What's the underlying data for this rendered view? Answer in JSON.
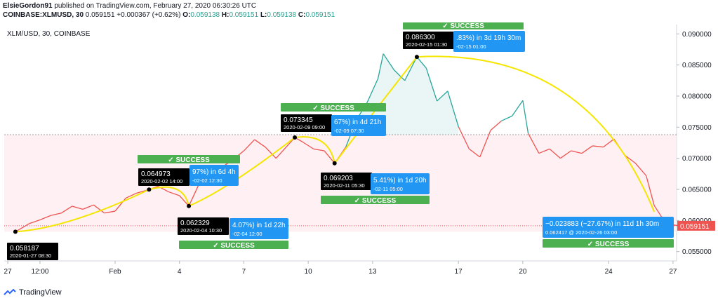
{
  "header": {
    "author": "ElsieGordon91",
    "published_text": "published on TradingView.com, February 27, 2020 06:30:26 UTC",
    "symbol_line": "COINBASE:XLMUSD, 30",
    "last": "0.059151",
    "change": "+0.000367 (+0.62%)",
    "o_label": "O:",
    "o": "0.059138",
    "h_label": "H:",
    "h": "0.059151",
    "l_label": "L:",
    "l": "0.059138",
    "c_label": "C:",
    "c": "0.059151"
  },
  "footer": {
    "brand": "TradingView"
  },
  "chart_data": {
    "type": "line",
    "title": "XLM/USD, 30, COINBASE",
    "x_tick_labels": [
      "27",
      "12:00",
      "Feb",
      "4",
      "7",
      "10",
      "13",
      "17",
      "20",
      "24",
      "27"
    ],
    "y_tick_labels": [
      "0.055000",
      "0.060000",
      "0.065000",
      "0.070000",
      "0.075000",
      "0.080000",
      "0.085000",
      "0.090000"
    ],
    "ylim": [
      0.0535,
      0.0915
    ],
    "xlim": [
      "2020-01-26T20:00",
      "2020-02-27T04:00"
    ],
    "last_price_label": "0.059151",
    "colors": {
      "up": "#26a69a",
      "down": "#ef5350",
      "arrow": "#f5e600",
      "success": "#4caf50",
      "label_blue": "#2196f3",
      "pivot_bg": "#000000"
    },
    "series": [
      {
        "values": [
          [
            "2020-01-27T08:30",
            0.058187
          ],
          [
            "2020-01-28T00:00",
            0.0595
          ],
          [
            "2020-01-28T12:00",
            0.0601
          ],
          [
            "2020-01-29T00:00",
            0.0608
          ],
          [
            "2020-01-29T12:00",
            0.0612
          ],
          [
            "2020-01-30T00:00",
            0.0623
          ],
          [
            "2020-01-30T12:00",
            0.0618
          ],
          [
            "2020-01-31T00:00",
            0.0625
          ],
          [
            "2020-01-31T12:00",
            0.0612
          ],
          [
            "2020-02-01T00:00",
            0.0615
          ],
          [
            "2020-02-01T12:00",
            0.0636
          ],
          [
            "2020-02-02T00:00",
            0.0644
          ],
          [
            "2020-02-02T14:00",
            0.064973
          ],
          [
            "2020-02-03T00:00",
            0.0655
          ],
          [
            "2020-02-03T12:00",
            0.0646
          ],
          [
            "2020-02-04T00:00",
            0.064
          ],
          [
            "2020-02-04T10:30",
            0.062329
          ],
          [
            "2020-02-05T00:00",
            0.0665
          ],
          [
            "2020-02-05T12:00",
            0.0682
          ],
          [
            "2020-02-06T00:00",
            0.0686
          ],
          [
            "2020-02-06T12:00",
            0.0698
          ],
          [
            "2020-02-07T00:00",
            0.0712
          ],
          [
            "2020-02-07T12:00",
            0.073
          ],
          [
            "2020-02-08T00:00",
            0.0718
          ],
          [
            "2020-02-08T12:00",
            0.07
          ],
          [
            "2020-02-09T09:00",
            0.073345
          ],
          [
            "2020-02-09T18:00",
            0.0726
          ],
          [
            "2020-02-10T06:00",
            0.0715
          ],
          [
            "2020-02-10T18:00",
            0.0712
          ],
          [
            "2020-02-11T05:30",
            0.069203
          ],
          [
            "2020-02-11T18:00",
            0.0718
          ],
          [
            "2020-02-12T06:00",
            0.0762
          ],
          [
            "2020-02-12T18:00",
            0.079
          ],
          [
            "2020-02-13T06:00",
            0.0828
          ],
          [
            "2020-02-13T12:00",
            0.0868
          ],
          [
            "2020-02-14T00:00",
            0.0842
          ],
          [
            "2020-02-14T12:00",
            0.0825
          ],
          [
            "2020-02-15T01:30",
            0.0863
          ],
          [
            "2020-02-15T12:00",
            0.0845
          ],
          [
            "2020-02-16T00:00",
            0.0792
          ],
          [
            "2020-02-16T12:00",
            0.0808
          ],
          [
            "2020-02-17T00:00",
            0.0751
          ],
          [
            "2020-02-17T12:00",
            0.0715
          ],
          [
            "2020-02-18T00:00",
            0.0702
          ],
          [
            "2020-02-18T12:00",
            0.0745
          ],
          [
            "2020-02-19T00:00",
            0.076
          ],
          [
            "2020-02-19T12:00",
            0.0768
          ],
          [
            "2020-02-20T00:00",
            0.0793
          ],
          [
            "2020-02-20T06:00",
            0.074
          ],
          [
            "2020-02-20T18:00",
            0.0708
          ],
          [
            "2020-02-21T06:00",
            0.0715
          ],
          [
            "2020-02-21T18:00",
            0.07
          ],
          [
            "2020-02-22T06:00",
            0.0712
          ],
          [
            "2020-02-22T18:00",
            0.0708
          ],
          [
            "2020-02-23T06:00",
            0.072
          ],
          [
            "2020-02-23T18:00",
            0.0718
          ],
          [
            "2020-02-24T06:00",
            0.0731
          ],
          [
            "2020-02-24T18:00",
            0.0705
          ],
          [
            "2020-02-25T06:00",
            0.0692
          ],
          [
            "2020-02-25T18:00",
            0.0672
          ],
          [
            "2020-02-26T03:00",
            0.0624
          ],
          [
            "2020-02-26T12:00",
            0.0604
          ],
          [
            "2020-02-27T00:00",
            0.0593
          ],
          [
            "2020-02-27T06:30",
            0.059151
          ]
        ]
      }
    ],
    "pivots": [
      {
        "price": "0.058187",
        "time": "2020-01-27 08:30"
      },
      {
        "price": "0.064973",
        "time": "2020-02-02 14:00"
      },
      {
        "price": "0.062329",
        "time": "2020-02-04 10:30"
      },
      {
        "price": "0.073345",
        "time": "2020-02-09 09:00"
      },
      {
        "price": "0.069203",
        "time": "2020-02-11 05:30"
      },
      {
        "price": "0.086300",
        "time": "2020-02-15 01:30"
      }
    ],
    "callouts": [
      {
        "line1": "97%) in 6d 4h",
        "line2": "-02-02  12:30",
        "status": "✓ SUCCESS"
      },
      {
        "line1": "4.07%) in 1d 22h",
        "line2": "-02-04  12:00",
        "status": "✓ SUCCESS"
      },
      {
        "line1": "67%) in 4d 21h",
        "line2": "-02-09  07:30",
        "status": "✓ SUCCESS"
      },
      {
        "line1": "5.41%) in 1d 20h",
        "line2": "-02-11  05:00",
        "status": "✓ SUCCESS"
      },
      {
        "line1": ".83%) in 3d 19h 30m",
        "line2": "-02-15  01:00",
        "status": "✓ SUCCESS"
      },
      {
        "line1": "−0.023883 (−27.67%) in 11d 1h 30m",
        "line2": "0.062417 @ 2020-02-26  03:00",
        "status": "✓ SUCCESS"
      }
    ]
  }
}
